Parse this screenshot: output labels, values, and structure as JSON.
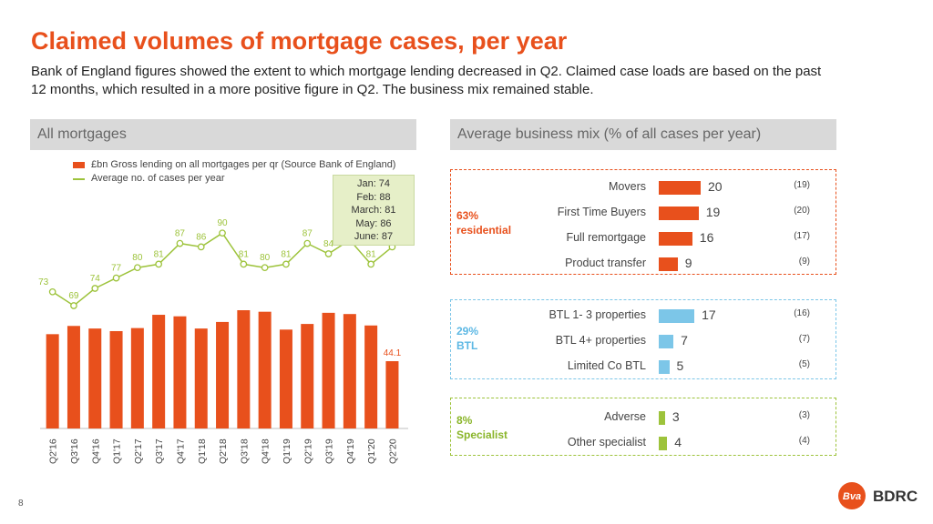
{
  "title": "Claimed volumes of mortgage cases, per year",
  "subtitle": "Bank of England figures showed the extent to which mortgage lending decreased in Q2. Claimed case loads are based on the past 12 months, which resulted in a more positive figure in Q2. The business mix remained stable.",
  "left_panel": {
    "header": "All mortgages"
  },
  "right_panel": {
    "header": "Average business mix (% of all cases per year)"
  },
  "legend": {
    "bar_label": "£bn Gross lending on all mortgages per qr (Source Bank of England)",
    "line_label": "Average no. of cases per year"
  },
  "monthly_box": [
    "Jan: 74",
    "Feb: 88",
    "March: 81",
    "May: 86",
    "June:  87"
  ],
  "colors": {
    "accent": "#e8501c",
    "green": "#9dc33b",
    "blue": "#7cc6e8"
  },
  "chart_data": [
    {
      "type": "bar",
      "categories": [
        "Q2'16",
        "Q3'16",
        "Q4'16",
        "Q1'17",
        "Q2'17",
        "Q3'17",
        "Q4'17",
        "Q1'18",
        "Q2'18",
        "Q3'18",
        "Q4'18",
        "Q1'19",
        "Q2'19",
        "Q3'19",
        "Q4'19",
        "Q1'20",
        "Q2'20"
      ],
      "series": [
        {
          "name": "£bn Gross lending on all mortgages per qr (Source Bank of England)",
          "type": "bar",
          "values": [
            61.8,
            67.2,
            65.5,
            63.8,
            65.8,
            74.5,
            73.5,
            65.5,
            69.8,
            77.5,
            76.5,
            64.8,
            68.5,
            75.8,
            75.0,
            67.5,
            44.1
          ],
          "labeled": [
            false,
            false,
            false,
            false,
            false,
            false,
            false,
            false,
            false,
            false,
            false,
            false,
            false,
            false,
            false,
            false,
            true
          ],
          "color": "#e8501c"
        },
        {
          "name": "Average no. of cases per year",
          "type": "line",
          "values": [
            73,
            69,
            74,
            77,
            80,
            81,
            87,
            86,
            90,
            81,
            80,
            81,
            87,
            84,
            88,
            81,
            86
          ],
          "color": "#9dc33b"
        }
      ],
      "ylim": [
        0,
        100
      ]
    },
    {
      "type": "bar",
      "orientation": "horizontal",
      "groups": [
        {
          "label_pct": "63%",
          "label_name": "residential",
          "color": "#e8501c",
          "items": [
            {
              "label": "Movers",
              "value": 20,
              "prev": "(19)"
            },
            {
              "label": "First Time Buyers",
              "value": 19,
              "prev": "(20)"
            },
            {
              "label": "Full remortgage",
              "value": 16,
              "prev": "(17)"
            },
            {
              "label": "Product transfer",
              "value": 9,
              "prev": "(9)"
            }
          ]
        },
        {
          "label_pct": "29%",
          "label_name": "BTL",
          "color": "#7cc6e8",
          "items": [
            {
              "label": "BTL 1- 3 properties",
              "value": 17,
              "prev": "(16)"
            },
            {
              "label": "BTL 4+ properties",
              "value": 7,
              "prev": "(7)"
            },
            {
              "label": "Limited Co BTL",
              "value": 5,
              "prev": "(5)"
            }
          ]
        },
        {
          "label_pct": "8%",
          "label_name": "Specialist",
          "color": "#9dc33b",
          "items": [
            {
              "label": "Adverse",
              "value": 3,
              "prev": "(3)"
            },
            {
              "label": "Other specialist",
              "value": 4,
              "prev": "(4)"
            }
          ]
        }
      ]
    }
  ],
  "page_number": "8",
  "logo": {
    "mark": "Bva",
    "text": "BDRC"
  }
}
